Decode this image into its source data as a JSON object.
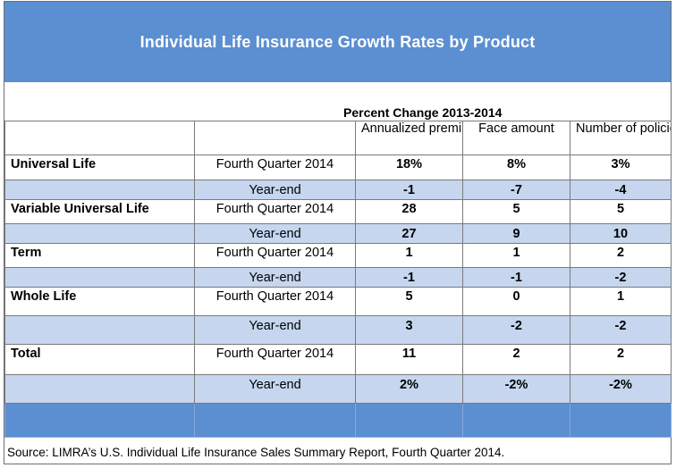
{
  "title": "Individual Life Insurance Growth Rates by Product",
  "subheader": "Percent Change 2013-2014",
  "columns": {
    "annualized": "Annualized premiums",
    "face": "Face amount",
    "policies": "Number of policies"
  },
  "rows": [
    {
      "product": "Universal Life",
      "period": "Fourth Quarter 2014",
      "annualized": "18%",
      "face": "8%",
      "policies": "3%"
    },
    {
      "product": "",
      "period": "Year-end",
      "annualized": "-1",
      "face": "-7",
      "policies": "-4"
    },
    {
      "product": "Variable Universal Life",
      "period": "Fourth Quarter 2014",
      "annualized": "28",
      "face": "5",
      "policies": "5"
    },
    {
      "product": "",
      "period": "Year-end",
      "annualized": "27",
      "face": "9",
      "policies": "10"
    },
    {
      "product": "Term",
      "period": "Fourth Quarter 2014",
      "annualized": "1",
      "face": "1",
      "policies": "2"
    },
    {
      "product": "",
      "period": "Year-end",
      "annualized": "-1",
      "face": "-1",
      "policies": "-2"
    },
    {
      "product": "Whole Life",
      "period": "Fourth Quarter 2014",
      "annualized": "5",
      "face": "0",
      "policies": "1"
    },
    {
      "product": "",
      "period": "Year-end",
      "annualized": "3",
      "face": "-2",
      "policies": "-2"
    },
    {
      "product": "Total",
      "period": "Fourth Quarter 2014",
      "annualized": "11",
      "face": "2",
      "policies": "2"
    },
    {
      "product": "",
      "period": "Year-end",
      "annualized": "2%",
      "face": "-2%",
      "policies": "-2%"
    }
  ],
  "source": "Source: LIMRA’s U.S. Individual Life Insurance Sales Summary Report, Fourth Quarter 2014.",
  "colors": {
    "banner": "#5b8fd1",
    "row_shade": "#c6d6ef"
  }
}
